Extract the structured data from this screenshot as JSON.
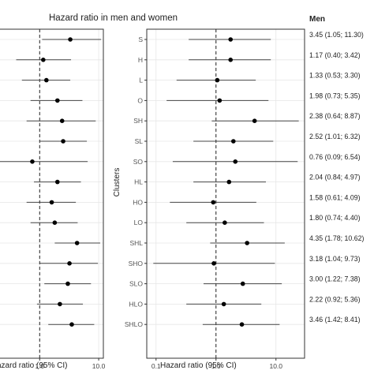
{
  "figure": {
    "title": "Hazard ratio in men and women"
  },
  "colors": {
    "panel_border": "#333333",
    "grid": "#e6e6e6",
    "ref_line": "#222222",
    "ci_line": "#444444",
    "point": "#000000",
    "background": "#ffffff"
  },
  "chart_data": [
    {
      "type": "forest",
      "panel": "left",
      "xlabel": "azard ratio (95% CI)",
      "xscale": "log",
      "xlim": [
        0.2,
        12
      ],
      "x_tick_labels": [
        "1.0",
        "10.0"
      ],
      "reference_x": 1.0,
      "grid": true,
      "rows": [
        {
          "hr": 3.3,
          "lo": 1.1,
          "hi": 11.0
        },
        {
          "hr": 1.15,
          "lo": 0.4,
          "hi": 3.4
        },
        {
          "hr": 1.3,
          "lo": 0.5,
          "hi": 3.3
        },
        {
          "hr": 2.0,
          "lo": 0.7,
          "hi": 5.3
        },
        {
          "hr": 2.4,
          "lo": 0.6,
          "hi": 8.9
        },
        {
          "hr": 2.5,
          "lo": 1.0,
          "hi": 6.3
        },
        {
          "hr": 0.75,
          "lo": 0.09,
          "hi": 6.5
        },
        {
          "hr": 2.0,
          "lo": 0.8,
          "hi": 5.0
        },
        {
          "hr": 1.6,
          "lo": 0.6,
          "hi": 4.1
        },
        {
          "hr": 1.8,
          "lo": 0.7,
          "hi": 4.4
        },
        {
          "hr": 4.3,
          "lo": 1.8,
          "hi": 10.6
        },
        {
          "hr": 3.2,
          "lo": 1.0,
          "hi": 9.7
        },
        {
          "hr": 3.0,
          "lo": 1.2,
          "hi": 7.4
        },
        {
          "hr": 2.2,
          "lo": 0.9,
          "hi": 5.4
        },
        {
          "hr": 3.5,
          "lo": 1.4,
          "hi": 8.4
        }
      ]
    },
    {
      "type": "forest",
      "panel": "right",
      "xlabel": "Hazard ratio (95% CI)",
      "ylabel": "Clusters",
      "xscale": "log",
      "xlim": [
        0.07,
        30
      ],
      "x_ticks": [
        0.1,
        1.0,
        10.0
      ],
      "x_tick_labels": [
        "0.1",
        "1.0",
        "10.0"
      ],
      "reference_x": 1.0,
      "grid": true,
      "categories": [
        "S",
        "H",
        "L",
        "O",
        "SH",
        "SL",
        "SO",
        "HL",
        "HO",
        "LO",
        "SHL",
        "SHO",
        "SLO",
        "HLO",
        "SHLO"
      ],
      "column_header": "Men",
      "value_labels": [
        "3.45 (1.05; 11.30)",
        "1.17 (0.40; 3.42)",
        "1.33 (0.53; 3.30)",
        "1.98 (0.73; 5.35)",
        "2.38 (0.64; 8.87)",
        "2.52 (1.01; 6.32)",
        "0.76 (0.09; 6.54)",
        "2.04 (0.84; 4.97)",
        "1.58 (0.61; 4.09)",
        "1.80 (0.74; 4.40)",
        "4.35 (1.78; 10.62)",
        "3.18 (1.04; 9.73)",
        "3.00 (1.22; 7.38)",
        "2.22 (0.92; 5.36)",
        "3.46 (1.42; 8.41)"
      ],
      "rows": [
        {
          "hr": 1.75,
          "lo": 0.35,
          "hi": 8.2
        },
        {
          "hr": 1.75,
          "lo": 0.35,
          "hi": 8.2
        },
        {
          "hr": 1.05,
          "lo": 0.22,
          "hi": 4.6
        },
        {
          "hr": 1.15,
          "lo": 0.15,
          "hi": 7.5
        },
        {
          "hr": 4.4,
          "lo": 0.85,
          "hi": 24.0
        },
        {
          "hr": 1.95,
          "lo": 0.42,
          "hi": 9.0
        },
        {
          "hr": 2.1,
          "lo": 0.19,
          "hi": 23.0
        },
        {
          "hr": 1.65,
          "lo": 0.42,
          "hi": 6.8
        },
        {
          "hr": 0.9,
          "lo": 0.17,
          "hi": 4.7
        },
        {
          "hr": 1.4,
          "lo": 0.32,
          "hi": 6.3
        },
        {
          "hr": 3.3,
          "lo": 0.8,
          "hi": 14.0
        },
        {
          "hr": 0.92,
          "lo": 0.09,
          "hi": 9.6
        },
        {
          "hr": 2.8,
          "lo": 0.62,
          "hi": 12.5
        },
        {
          "hr": 1.35,
          "lo": 0.32,
          "hi": 5.7
        },
        {
          "hr": 2.7,
          "lo": 0.6,
          "hi": 11.5
        }
      ]
    }
  ]
}
